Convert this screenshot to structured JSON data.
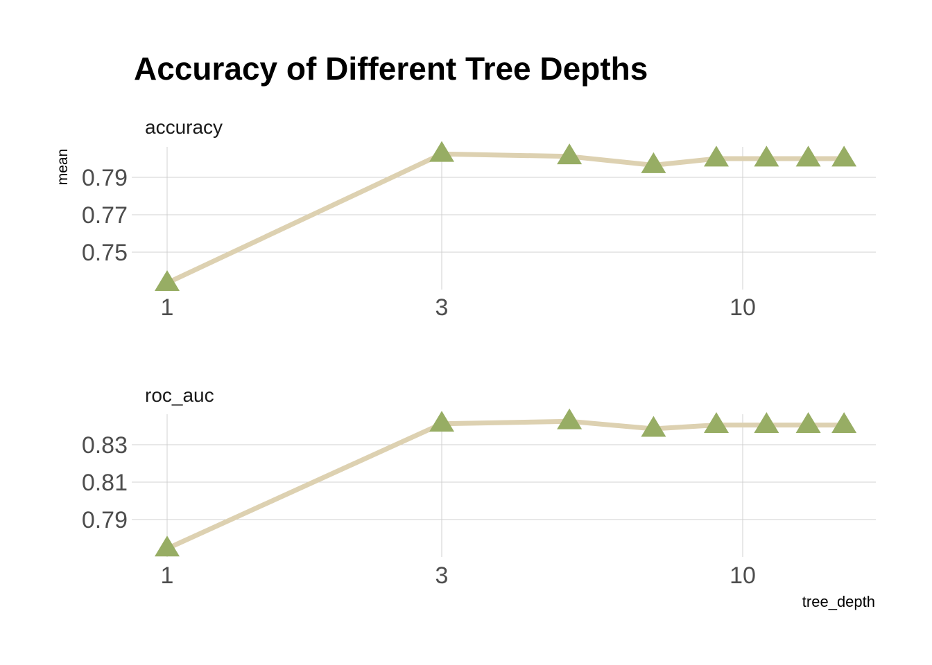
{
  "chart_data": {
    "type": "line",
    "title": "Accuracy of Different Tree Depths",
    "xlabel": "tree_depth",
    "ylabel": "mean",
    "x_scale": "log10",
    "x_ticks": [
      1,
      3,
      10
    ],
    "grid": true,
    "line_color": "#ddd1b1",
    "marker_color": "#97ad64",
    "marker": "triangle",
    "facets": [
      {
        "name": "accuracy",
        "x": [
          1,
          3,
          5,
          7,
          9,
          11,
          13,
          15
        ],
        "y": [
          0.7335,
          0.8025,
          0.8012,
          0.7965,
          0.8,
          0.8,
          0.8,
          0.8
        ],
        "y_ticks": [
          0.75,
          0.77,
          0.79
        ]
      },
      {
        "name": "roc_auc",
        "x": [
          1,
          3,
          5,
          7,
          9,
          11,
          13,
          15
        ],
        "y": [
          0.7745,
          0.8412,
          0.8425,
          0.8385,
          0.8405,
          0.8405,
          0.8405,
          0.8405
        ],
        "y_ticks": [
          0.79,
          0.81,
          0.83
        ]
      }
    ]
  }
}
